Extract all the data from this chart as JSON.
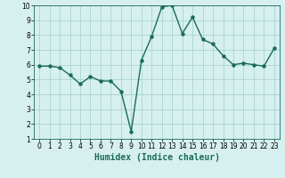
{
  "x": [
    0,
    1,
    2,
    3,
    4,
    5,
    6,
    7,
    8,
    9,
    10,
    11,
    12,
    13,
    14,
    15,
    16,
    17,
    18,
    19,
    20,
    21,
    22,
    23
  ],
  "y": [
    5.9,
    5.9,
    5.8,
    5.3,
    4.7,
    5.2,
    4.9,
    4.9,
    4.2,
    1.5,
    6.3,
    7.9,
    9.9,
    10.0,
    8.1,
    9.2,
    7.7,
    7.4,
    6.6,
    6.0,
    6.1,
    6.0,
    5.9,
    7.1
  ],
  "line_color": "#1a6b5a",
  "marker_color": "#1a6b5a",
  "bg_color": "#d6f0ef",
  "grid_color": "#a0cfc9",
  "xlabel": "Humidex (Indice chaleur)",
  "xlabel_fontsize": 7,
  "xlim": [
    -0.5,
    23.5
  ],
  "ylim": [
    1,
    10
  ],
  "yticks": [
    1,
    2,
    3,
    4,
    5,
    6,
    7,
    8,
    9,
    10
  ],
  "xticks": [
    0,
    1,
    2,
    3,
    4,
    5,
    6,
    7,
    8,
    9,
    10,
    11,
    12,
    13,
    14,
    15,
    16,
    17,
    18,
    19,
    20,
    21,
    22,
    23
  ],
  "tick_fontsize": 5.5
}
